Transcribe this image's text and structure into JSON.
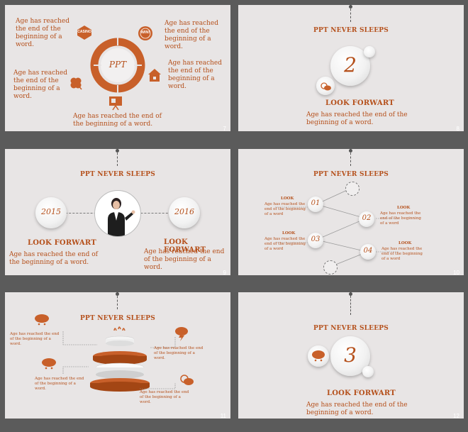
{
  "slides": {
    "s7": {
      "number": "7",
      "center_label": "PPT",
      "text_top_left": "Age has reached the end of the beginning of a word.",
      "text_top_right": "Age has reached the end of the beginning of a word.",
      "text_mid_left": "Age has reached the end of the beginning of a word.",
      "text_mid_right": "Age has reached the end of the beginning of a word.",
      "text_bottom": "Age has reached the end of the beginning of a word.",
      "casino_label": "CASINO",
      "win_label": "WIN!"
    },
    "s8": {
      "number": "8",
      "title": "PPT NEVER SLEEPS",
      "big_number": "2",
      "heading": "LOOK FORWART",
      "text": "Age has reached the end of the beginning of a word."
    },
    "s9": {
      "number": "9",
      "title": "PPT NEVER SLEEPS",
      "year_left": "2015",
      "year_right": "2016",
      "heading_left": "LOOK FORWART",
      "heading_right": "LOOK FORWART",
      "text_left": "Age has reached the end of the beginning of a word.",
      "text_right": "Age has reached the end of the beginning of a word."
    },
    "s10": {
      "number": "10",
      "title": "PPT NEVER SLEEPS",
      "steps": [
        {
          "label": "01",
          "heading": "LOOK",
          "text": "Age has reached the end of the beginning of a word"
        },
        {
          "label": "02",
          "heading": "LOOK",
          "text": "Age has reached the end of the beginning of a word"
        },
        {
          "label": "03",
          "heading": "LOOK",
          "text": "Age has reached the end of the beginning of a word"
        },
        {
          "label": "04",
          "heading": "LOOK",
          "text": "Age has reached the end of the beginning of a word"
        }
      ]
    },
    "s11": {
      "number": "11",
      "title": "PPT NEVER SLEEPS",
      "text_1": "Age has reached the end of the beginning of a word.",
      "text_2": "Age has reached the end of the beginning of a word.",
      "text_3": "Age has reached the end of the beginning of a word.",
      "text_4": "Age has reached the end of the beginning of a word."
    },
    "s12": {
      "number": "12",
      "title": "PPT NEVER SLEEPS",
      "big_number": "3",
      "heading": "LOOK FORWART",
      "text": "Age has reached the end of the beginning of a word."
    }
  },
  "colors": {
    "accent": "#b5501b",
    "slide_bg": "#e8e5e5",
    "page_bg": "#5b5b5b"
  }
}
